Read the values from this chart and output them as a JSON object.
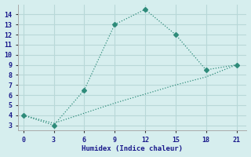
{
  "line1_x": [
    0,
    3,
    6,
    9,
    12,
    15,
    18,
    21
  ],
  "line1_y": [
    4,
    3,
    6.5,
    13,
    14.5,
    12,
    8.5,
    9
  ],
  "line2_x": [
    0,
    3,
    6,
    9,
    12,
    15,
    18,
    21
  ],
  "line2_y": [
    4.0,
    3.2,
    4.2,
    5.2,
    6.1,
    7.0,
    7.8,
    9.0
  ],
  "line_color": "#2e8b7a",
  "bg_color": "#d6eeee",
  "grid_color": "#b8d8d8",
  "xlabel": "Humidex (Indice chaleur)",
  "xlim": [
    -0.5,
    22
  ],
  "ylim": [
    2.5,
    15
  ],
  "xticks": [
    0,
    3,
    6,
    9,
    12,
    15,
    18,
    21
  ],
  "yticks": [
    3,
    4,
    5,
    6,
    7,
    8,
    9,
    10,
    11,
    12,
    13,
    14
  ],
  "markersize": 3.0,
  "linewidth": 0.9
}
